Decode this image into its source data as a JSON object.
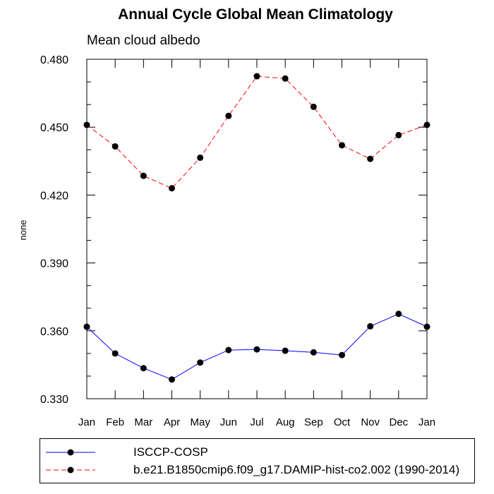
{
  "chart_data": {
    "type": "line",
    "title": "Annual Cycle Global Mean Climatology",
    "subtitle": "Mean cloud albedo",
    "ylabel": "none",
    "xlabel": "",
    "categories": [
      "Jan",
      "Feb",
      "Mar",
      "Apr",
      "May",
      "Jun",
      "Jul",
      "Aug",
      "Sep",
      "Oct",
      "Nov",
      "Dec",
      "Jan"
    ],
    "ylim": [
      0.33,
      0.48
    ],
    "yticks": [
      "0.330",
      "0.360",
      "0.390",
      "0.420",
      "0.450",
      "0.480"
    ],
    "grid": false,
    "legend_position": "bottom",
    "series": [
      {
        "name": "ISCCP-COSP",
        "color": "#0000ff",
        "line_style": "solid",
        "values": [
          0.3618,
          0.35,
          0.3435,
          0.3385,
          0.346,
          0.3515,
          0.3518,
          0.3512,
          0.3505,
          0.3493,
          0.362,
          0.3675,
          0.3618
        ]
      },
      {
        "name": "b.e21.B1850cmip6.f09_g17.DAMIP-hist-co2.002 (1990-2014)",
        "color": "#ff0000",
        "line_style": "dashed",
        "values": [
          0.451,
          0.4415,
          0.4285,
          0.423,
          0.4365,
          0.455,
          0.4725,
          0.4715,
          0.459,
          0.442,
          0.436,
          0.4465,
          0.451
        ]
      }
    ]
  }
}
